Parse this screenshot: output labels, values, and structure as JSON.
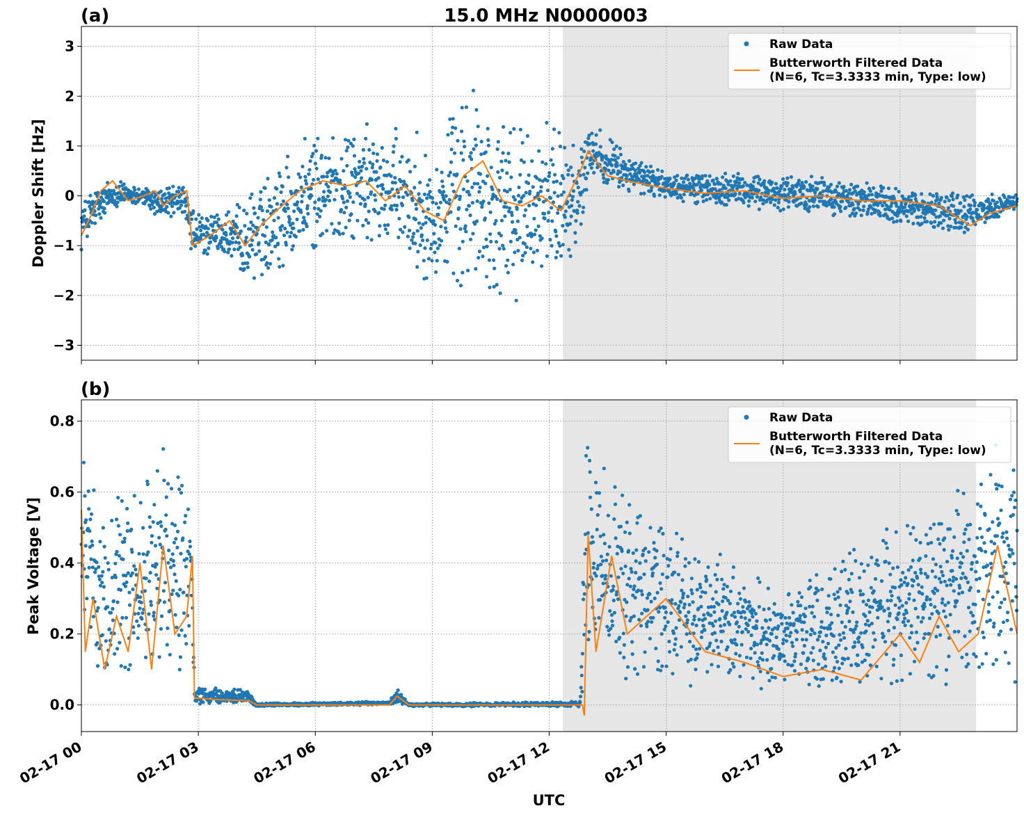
{
  "chart_data": [
    {
      "type": "scatter",
      "panel_label": "(a)",
      "title": "15.0 MHz N0000003",
      "xlabel": "",
      "ylabel": "Doppler Shift [Hz]",
      "xlim_hours": [
        0,
        24
      ],
      "ylim": [
        -3.3,
        3.4
      ],
      "yticks": [
        -3,
        -2,
        -1,
        0,
        1,
        2,
        3
      ],
      "ytick_labels": [
        "−3",
        "−2",
        "−1",
        "0",
        "1",
        "2",
        "3"
      ],
      "grid": true,
      "legend_position": "top-right",
      "shaded_region_hours": [
        12.35,
        22.95
      ],
      "shade_color": "#e6e6e6",
      "series": [
        {
          "name": "Raw Data",
          "style": "points",
          "color": "#1f77b4",
          "envelope": [
            {
              "x": 0.0,
              "lo": -1.1,
              "hi": 0.0
            },
            {
              "x": 0.4,
              "lo": -0.8,
              "hi": 0.3
            },
            {
              "x": 0.8,
              "lo": -0.3,
              "hi": 0.4
            },
            {
              "x": 1.5,
              "lo": -0.2,
              "hi": 0.2
            },
            {
              "x": 2.0,
              "lo": -0.5,
              "hi": 0.2
            },
            {
              "x": 2.6,
              "lo": -0.4,
              "hi": 0.3
            },
            {
              "x": 2.85,
              "lo": -1.4,
              "hi": -0.2
            },
            {
              "x": 3.5,
              "lo": -1.2,
              "hi": -0.3
            },
            {
              "x": 4.2,
              "lo": -1.8,
              "hi": -0.1
            },
            {
              "x": 5.0,
              "lo": -1.6,
              "hi": 0.9
            },
            {
              "x": 6.0,
              "lo": -1.2,
              "hi": 1.3
            },
            {
              "x": 7.0,
              "lo": -1.0,
              "hi": 1.5
            },
            {
              "x": 8.0,
              "lo": -1.3,
              "hi": 1.4
            },
            {
              "x": 9.0,
              "lo": -2.0,
              "hi": 1.3
            },
            {
              "x": 10.0,
              "lo": -2.2,
              "hi": 2.4
            },
            {
              "x": 11.0,
              "lo": -2.5,
              "hi": 1.8
            },
            {
              "x": 12.0,
              "lo": -2.0,
              "hi": 1.6
            },
            {
              "x": 12.85,
              "lo": -1.0,
              "hi": 1.3
            },
            {
              "x": 13.0,
              "lo": 0.3,
              "hi": 1.6
            },
            {
              "x": 14.0,
              "lo": 0.0,
              "hi": 0.9
            },
            {
              "x": 15.0,
              "lo": -0.1,
              "hi": 0.5
            },
            {
              "x": 17.0,
              "lo": -0.3,
              "hi": 0.5
            },
            {
              "x": 19.0,
              "lo": -0.4,
              "hi": 0.4
            },
            {
              "x": 21.0,
              "lo": -0.6,
              "hi": 0.2
            },
            {
              "x": 22.8,
              "lo": -0.9,
              "hi": 0.1
            },
            {
              "x": 24.0,
              "lo": -0.3,
              "hi": 0.1
            }
          ]
        },
        {
          "name": "Butterworth Filtered Data\n(N=6, Tc=3.3333 min, Type: low)",
          "style": "line",
          "color": "#ff7f0e",
          "x": [
            0.0,
            0.3,
            0.5,
            0.8,
            1.2,
            1.6,
            1.9,
            2.1,
            2.4,
            2.7,
            2.85,
            3.3,
            3.8,
            4.2,
            4.6,
            5.0,
            5.6,
            6.2,
            6.8,
            7.3,
            7.8,
            8.3,
            8.8,
            9.3,
            9.8,
            10.3,
            10.8,
            11.3,
            11.8,
            12.3,
            12.8,
            13.0,
            13.5,
            14.0,
            15.0,
            16.0,
            17.0,
            18.0,
            19.0,
            20.0,
            21.0,
            22.0,
            22.8,
            23.3,
            24.0
          ],
          "y": [
            -0.8,
            -0.3,
            0.1,
            0.3,
            -0.1,
            0.0,
            0.1,
            -0.2,
            0.0,
            0.1,
            -1.0,
            -0.8,
            -0.5,
            -1.0,
            -0.6,
            -0.3,
            0.1,
            0.3,
            0.2,
            0.3,
            -0.1,
            0.2,
            -0.3,
            -0.5,
            0.4,
            0.7,
            -0.1,
            -0.2,
            0.0,
            -0.3,
            0.5,
            0.9,
            0.4,
            0.3,
            0.15,
            0.05,
            0.1,
            -0.05,
            0.0,
            -0.1,
            -0.1,
            -0.2,
            -0.6,
            -0.35,
            -0.2
          ]
        }
      ]
    },
    {
      "type": "scatter",
      "panel_label": "(b)",
      "title": "",
      "xlabel": "UTC",
      "ylabel": "Peak Voltage [V]",
      "xlim_hours": [
        0,
        24
      ],
      "ylim": [
        -0.075,
        0.86
      ],
      "yticks": [
        0.0,
        0.2,
        0.4,
        0.6,
        0.8
      ],
      "ytick_labels": [
        "0.0",
        "0.2",
        "0.4",
        "0.6",
        "0.8"
      ],
      "xticks_hours": [
        0,
        3,
        6,
        9,
        12,
        15,
        18,
        21
      ],
      "xtick_labels": [
        "02-17 00",
        "02-17 03",
        "02-17 06",
        "02-17 09",
        "02-17 12",
        "02-17 15",
        "02-17 18",
        "02-17 21"
      ],
      "grid": true,
      "legend_position": "top-right",
      "shaded_region_hours": [
        12.35,
        22.95
      ],
      "shade_color": "#e6e6e6",
      "series": [
        {
          "name": "Raw Data",
          "style": "points",
          "color": "#1f77b4",
          "envelope": [
            {
              "x": 0.0,
              "lo": 0.1,
              "hi": 0.78
            },
            {
              "x": 0.5,
              "lo": 0.05,
              "hi": 0.55
            },
            {
              "x": 1.0,
              "lo": 0.05,
              "hi": 0.6
            },
            {
              "x": 1.7,
              "lo": 0.05,
              "hi": 0.68
            },
            {
              "x": 2.1,
              "lo": 0.05,
              "hi": 0.76
            },
            {
              "x": 2.5,
              "lo": 0.05,
              "hi": 0.72
            },
            {
              "x": 2.8,
              "lo": 0.1,
              "hi": 0.77
            },
            {
              "x": 2.9,
              "lo": 0.0,
              "hi": 0.06
            },
            {
              "x": 4.3,
              "lo": 0.0,
              "hi": 0.04
            },
            {
              "x": 4.5,
              "lo": -0.005,
              "hi": 0.005
            },
            {
              "x": 7.9,
              "lo": 0.0,
              "hi": 0.01
            },
            {
              "x": 8.1,
              "lo": 0.0,
              "hi": 0.05
            },
            {
              "x": 8.4,
              "lo": -0.005,
              "hi": 0.005
            },
            {
              "x": 12.8,
              "lo": -0.005,
              "hi": 0.01
            },
            {
              "x": 12.95,
              "lo": 0.1,
              "hi": 0.8
            },
            {
              "x": 13.5,
              "lo": 0.05,
              "hi": 0.65
            },
            {
              "x": 14.5,
              "lo": 0.06,
              "hi": 0.6
            },
            {
              "x": 16.0,
              "lo": 0.05,
              "hi": 0.45
            },
            {
              "x": 18.0,
              "lo": 0.03,
              "hi": 0.35
            },
            {
              "x": 20.5,
              "lo": 0.03,
              "hi": 0.5
            },
            {
              "x": 22.0,
              "lo": 0.05,
              "hi": 0.6
            },
            {
              "x": 23.5,
              "lo": 0.05,
              "hi": 0.75
            },
            {
              "x": 24.0,
              "lo": 0.05,
              "hi": 0.8
            }
          ]
        },
        {
          "name": "Butterworth Filtered Data\n(N=6, Tc=3.3333 min, Type: low)",
          "style": "line",
          "color": "#ff7f0e",
          "x": [
            0.0,
            0.1,
            0.3,
            0.6,
            0.9,
            1.2,
            1.5,
            1.8,
            2.1,
            2.4,
            2.7,
            2.85,
            2.9,
            3.5,
            4.3,
            4.5,
            7.9,
            8.1,
            8.4,
            12.85,
            12.9,
            13.0,
            13.2,
            13.6,
            14.0,
            15.0,
            16.0,
            17.0,
            18.0,
            19.0,
            20.0,
            21.0,
            21.5,
            22.0,
            22.5,
            23.0,
            23.5,
            23.8,
            24.0
          ],
          "y": [
            0.55,
            0.15,
            0.3,
            0.1,
            0.25,
            0.15,
            0.4,
            0.1,
            0.45,
            0.2,
            0.25,
            0.42,
            0.02,
            0.015,
            0.012,
            0.0,
            0.0,
            0.025,
            0.0,
            0.0,
            -0.03,
            0.48,
            0.15,
            0.42,
            0.2,
            0.3,
            0.15,
            0.12,
            0.08,
            0.1,
            0.07,
            0.2,
            0.12,
            0.25,
            0.15,
            0.2,
            0.45,
            0.3,
            0.2
          ]
        }
      ]
    }
  ]
}
